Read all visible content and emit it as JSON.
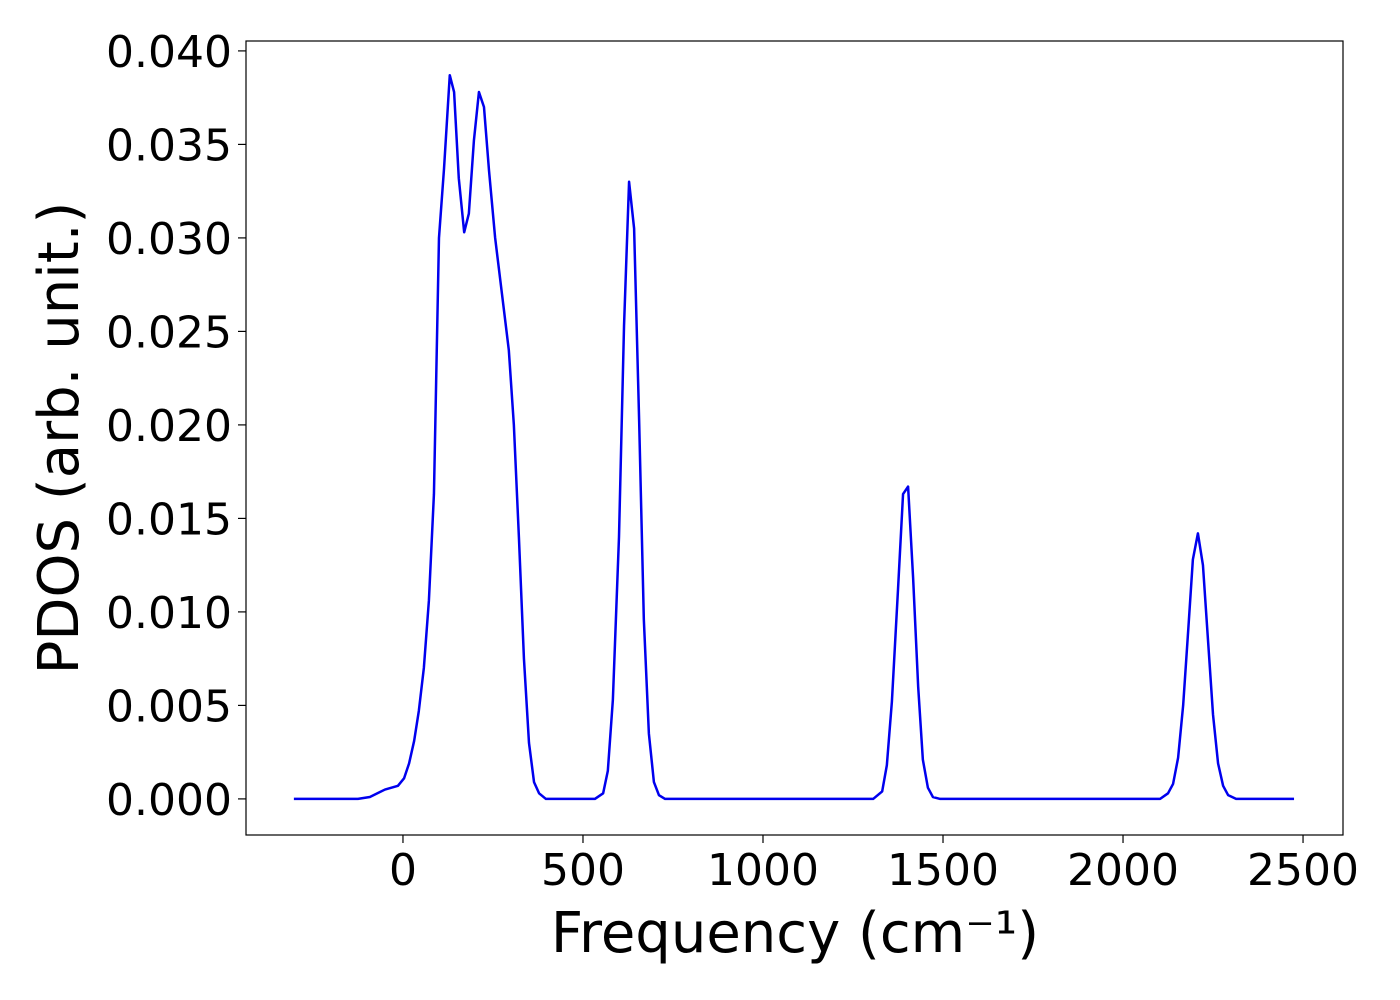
{
  "chart_data": {
    "type": "line",
    "x_label": "Frequency (cm⁻¹)",
    "y_label": "PDOS (arb. unit.)",
    "xlim": [
      -436,
      2611
    ],
    "ylim": [
      -0.00193,
      0.04053
    ],
    "xticks": [
      0,
      500,
      1000,
      1500,
      2000,
      2500
    ],
    "yticks": [
      {
        "value": 0,
        "label": "0.000"
      },
      {
        "value": 0.005,
        "label": "0.005"
      },
      {
        "value": 0.01,
        "label": "0.010"
      },
      {
        "value": 0.015,
        "label": "0.015"
      },
      {
        "value": 0.02,
        "label": "0.020"
      },
      {
        "value": 0.025,
        "label": "0.025"
      },
      {
        "value": 0.03,
        "label": "0.030"
      },
      {
        "value": 0.035,
        "label": "0.035"
      },
      {
        "value": 0.04,
        "label": "0.040"
      }
    ],
    "grid": false,
    "series": [
      {
        "color": "#0000ee",
        "x": [
          -303,
          -125,
          -92,
          -50,
          -14,
          3,
          17,
          31,
          44,
          58,
          72,
          86,
          100,
          114,
          130,
          142,
          155,
          170,
          183,
          197,
          211,
          225,
          239,
          256,
          275,
          294,
          308,
          322,
          336,
          350,
          364,
          378,
          397,
          533,
          556,
          569,
          583,
          600,
          614,
          628,
          642,
          656,
          669,
          683,
          697,
          711,
          728,
          1306,
          1331,
          1344,
          1358,
          1375,
          1389,
          1403,
          1417,
          1431,
          1444,
          1458,
          1472,
          1492,
          2103,
          2125,
          2139,
          2153,
          2167,
          2181,
          2194,
          2208,
          2222,
          2236,
          2250,
          2264,
          2278,
          2292,
          2314,
          2475
        ],
        "values": [
          0,
          0,
          0.0001,
          0.0005,
          0.0007,
          0.0011,
          0.0019,
          0.0031,
          0.0047,
          0.007,
          0.0106,
          0.0163,
          0.03,
          0.0337,
          0.0387,
          0.0378,
          0.0332,
          0.0303,
          0.0313,
          0.0352,
          0.0378,
          0.037,
          0.0336,
          0.03,
          0.027,
          0.024,
          0.02,
          0.014,
          0.0075,
          0.003,
          0.0009,
          0.0003,
          0,
          0,
          0.0003,
          0.0015,
          0.0053,
          0.014,
          0.0253,
          0.033,
          0.0305,
          0.0202,
          0.0096,
          0.0035,
          0.0009,
          0.0002,
          0,
          0,
          0.0004,
          0.0018,
          0.0052,
          0.0112,
          0.0163,
          0.0167,
          0.0118,
          0.006,
          0.0021,
          0.0006,
          0.0001,
          0,
          0,
          0.0003,
          0.0008,
          0.0022,
          0.005,
          0.009,
          0.0128,
          0.0142,
          0.0125,
          0.0085,
          0.0045,
          0.0019,
          0.0007,
          0.0002,
          0,
          0
        ]
      }
    ]
  }
}
